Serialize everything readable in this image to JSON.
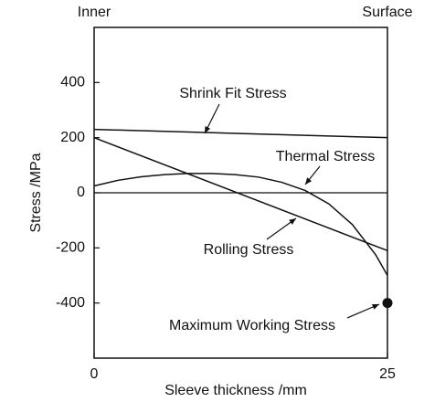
{
  "chart_data": {
    "type": "line",
    "xlabel": "Sleeve thickness /mm",
    "ylabel": "Stress /MPa",
    "left_label": "Inner",
    "right_label": "Surface",
    "xlim": [
      0,
      25
    ],
    "xticks": [
      0,
      25
    ],
    "ylim": [
      -600,
      600
    ],
    "yticks": [
      400,
      200,
      0,
      -200,
      -400
    ],
    "series": [
      {
        "name": "Shrink Fit Stress",
        "color": "#111111",
        "x": [
          0,
          25
        ],
        "values": [
          230,
          200
        ]
      },
      {
        "name": "Rolling Stress",
        "color": "#111111",
        "x": [
          0,
          25
        ],
        "values": [
          200,
          -210
        ]
      },
      {
        "name": "Thermal Stress",
        "color": "#111111",
        "x": [
          0,
          2,
          4,
          6,
          8,
          10,
          12,
          14,
          16,
          18,
          20,
          22,
          24,
          25
        ],
        "values": [
          25,
          45,
          58,
          66,
          70,
          70,
          66,
          57,
          38,
          8,
          -40,
          -115,
          -225,
          -300
        ]
      }
    ],
    "points": [
      {
        "name": "Maximum Working Stress",
        "x": 25,
        "y": -400,
        "color": "#111111"
      }
    ]
  }
}
